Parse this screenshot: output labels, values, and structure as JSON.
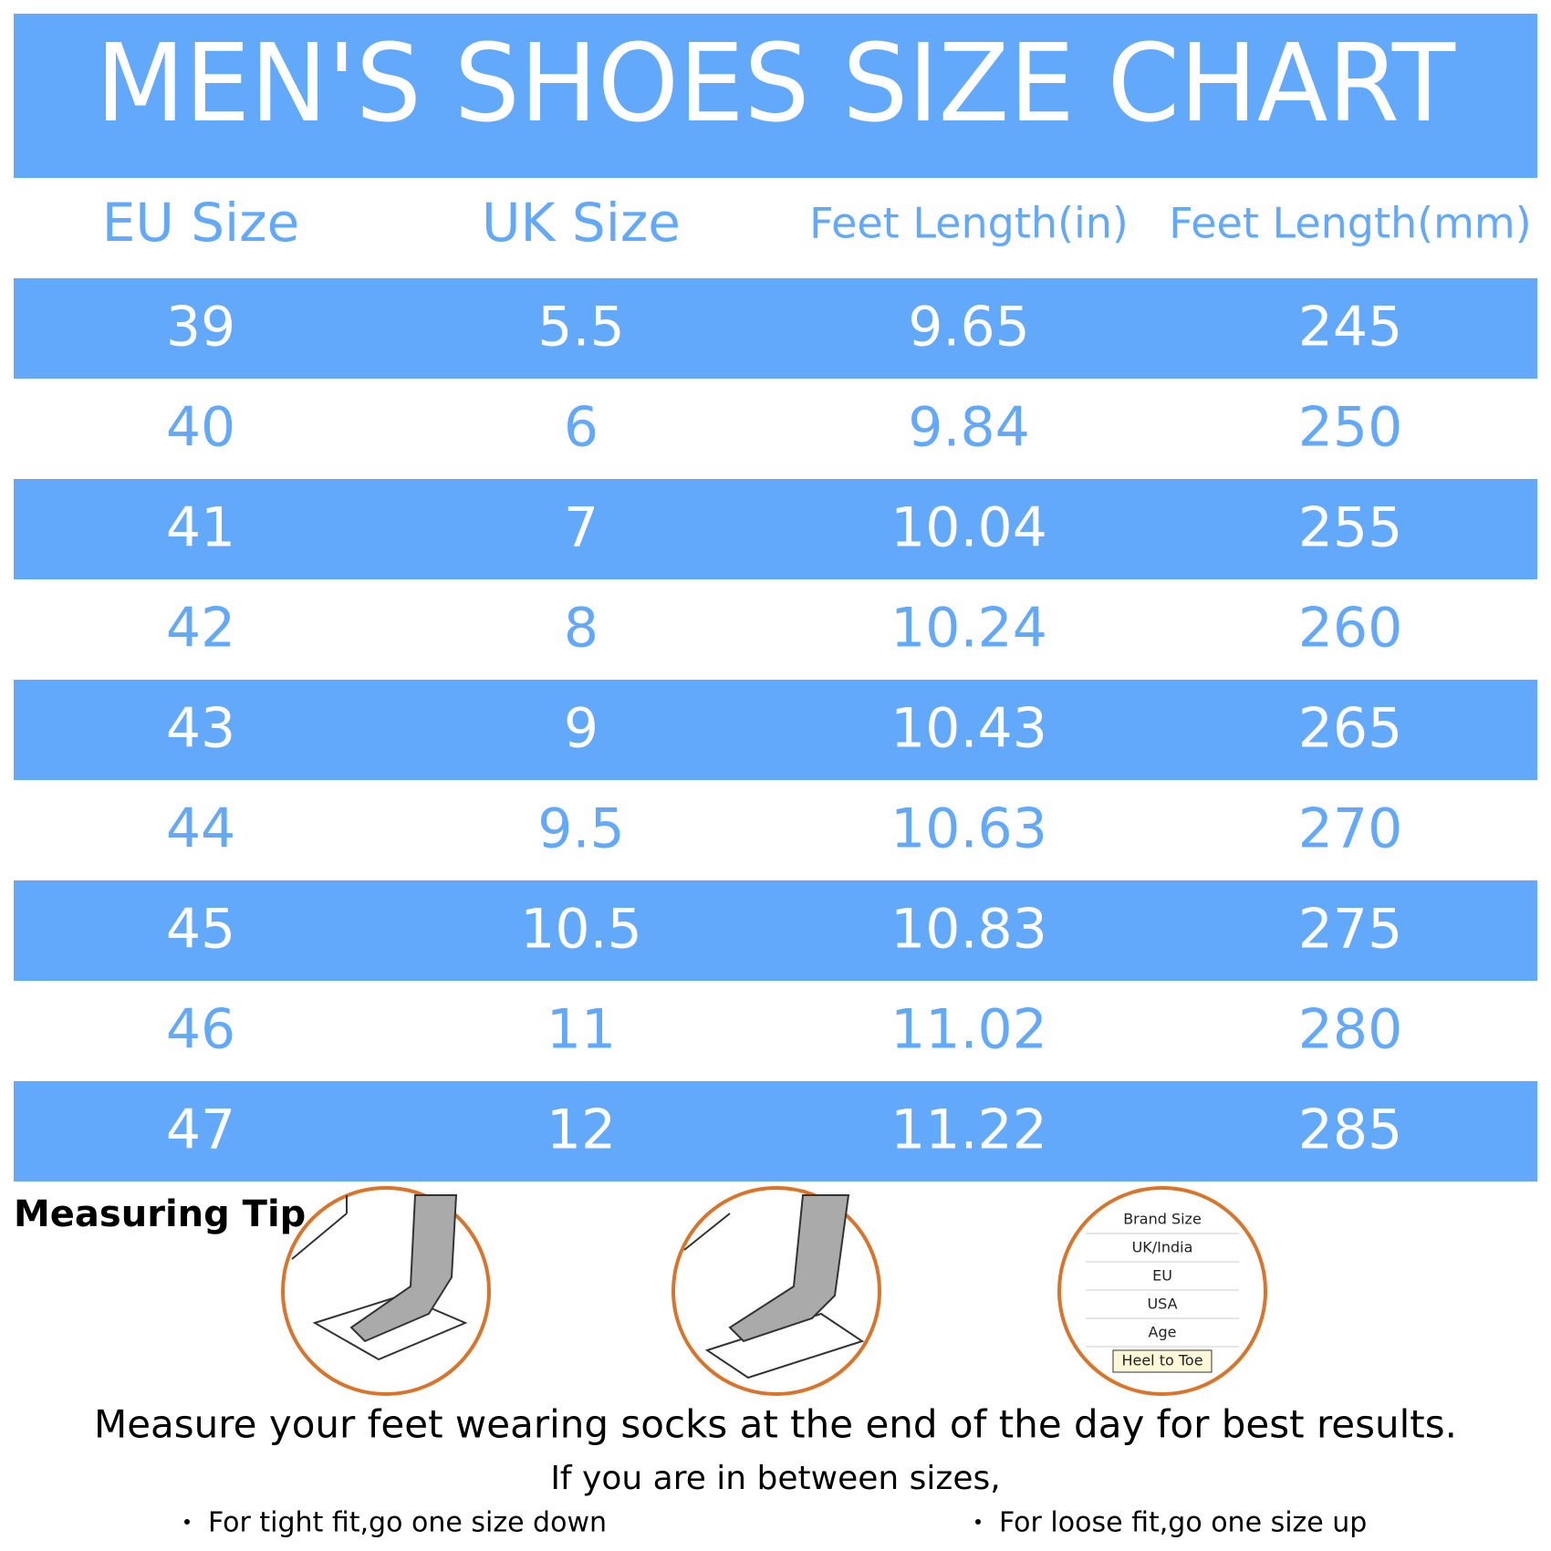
{
  "header": {
    "title": "MEN'S SHOES SIZE CHART"
  },
  "table": {
    "headers": [
      "EU Size",
      "UK Size",
      "Feet Length(in)",
      "Feet Length(mm)"
    ],
    "rows": [
      [
        "39",
        "5.5",
        "9.65",
        "245"
      ],
      [
        "40",
        "6",
        "9.84",
        "250"
      ],
      [
        "41",
        "7",
        "10.04",
        "255"
      ],
      [
        "42",
        "8",
        "10.24",
        "260"
      ],
      [
        "43",
        "9",
        "10.43",
        "265"
      ],
      [
        "44",
        "9.5",
        "10.63",
        "270"
      ],
      [
        "45",
        "10.5",
        "10.83",
        "275"
      ],
      [
        "46",
        "11",
        "11.02",
        "280"
      ],
      [
        "47",
        "12",
        "11.22",
        "285"
      ]
    ]
  },
  "tips": {
    "heading": "Measuring Tip",
    "size_card": [
      "Brand Size",
      "UK/India",
      "EU",
      "USA",
      "Age",
      "Heel to Toe"
    ],
    "main": "Measure your feet wearing socks at the end of the day for best results.",
    "between": "If you are in between sizes,",
    "bullets": [
      "For tight fit,go one size down",
      "For loose fit,go one size up"
    ]
  }
}
